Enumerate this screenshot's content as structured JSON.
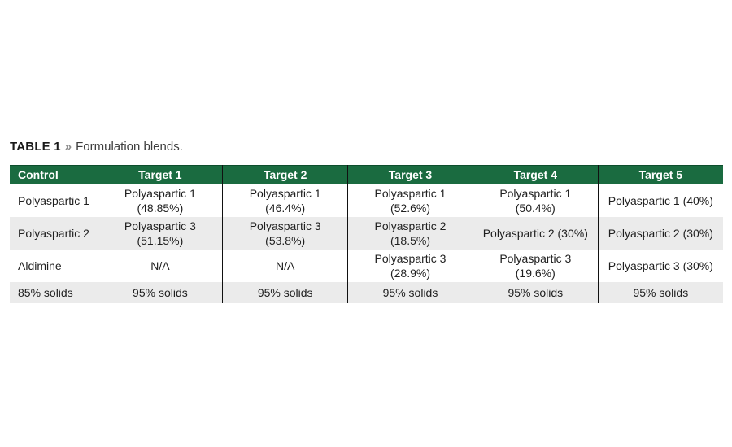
{
  "caption": {
    "label": "TABLE 1",
    "separator": "»",
    "text": "Formulation blends."
  },
  "colors": {
    "header_bg": "#1A6B40",
    "header_text": "#FFFFFF",
    "alt_row_bg": "#EBEBEB",
    "grid_line": "#111111"
  },
  "table": {
    "headers": [
      "Control",
      "Target 1",
      "Target 2",
      "Target 3",
      "Target 4",
      "Target 5"
    ],
    "rows": [
      {
        "cells": [
          "Polyaspartic 1",
          "Polyaspartic 1\n(48.85%)",
          "Polyaspartic 1\n(46.4%)",
          "Polyaspartic 1\n(52.6%)",
          "Polyaspartic 1\n(50.4%)",
          "Polyaspartic 1 (40%)"
        ]
      },
      {
        "cells": [
          "Polyaspartic 2",
          "Polyaspartic 3\n(51.15%)",
          "Polyaspartic 3\n(53.8%)",
          "Polyaspartic 2\n(18.5%)",
          "Polyaspartic 2 (30%)",
          "Polyaspartic 2 (30%)"
        ]
      },
      {
        "cells": [
          "Aldimine",
          "N/A",
          "N/A",
          "Polyaspartic 3\n(28.9%)",
          "Polyaspartic 3\n(19.6%)",
          "Polyaspartic 3 (30%)"
        ]
      },
      {
        "cells": [
          "85% solids",
          "95% solids",
          "95% solids",
          "95% solids",
          "95% solids",
          "95% solids"
        ]
      }
    ]
  }
}
